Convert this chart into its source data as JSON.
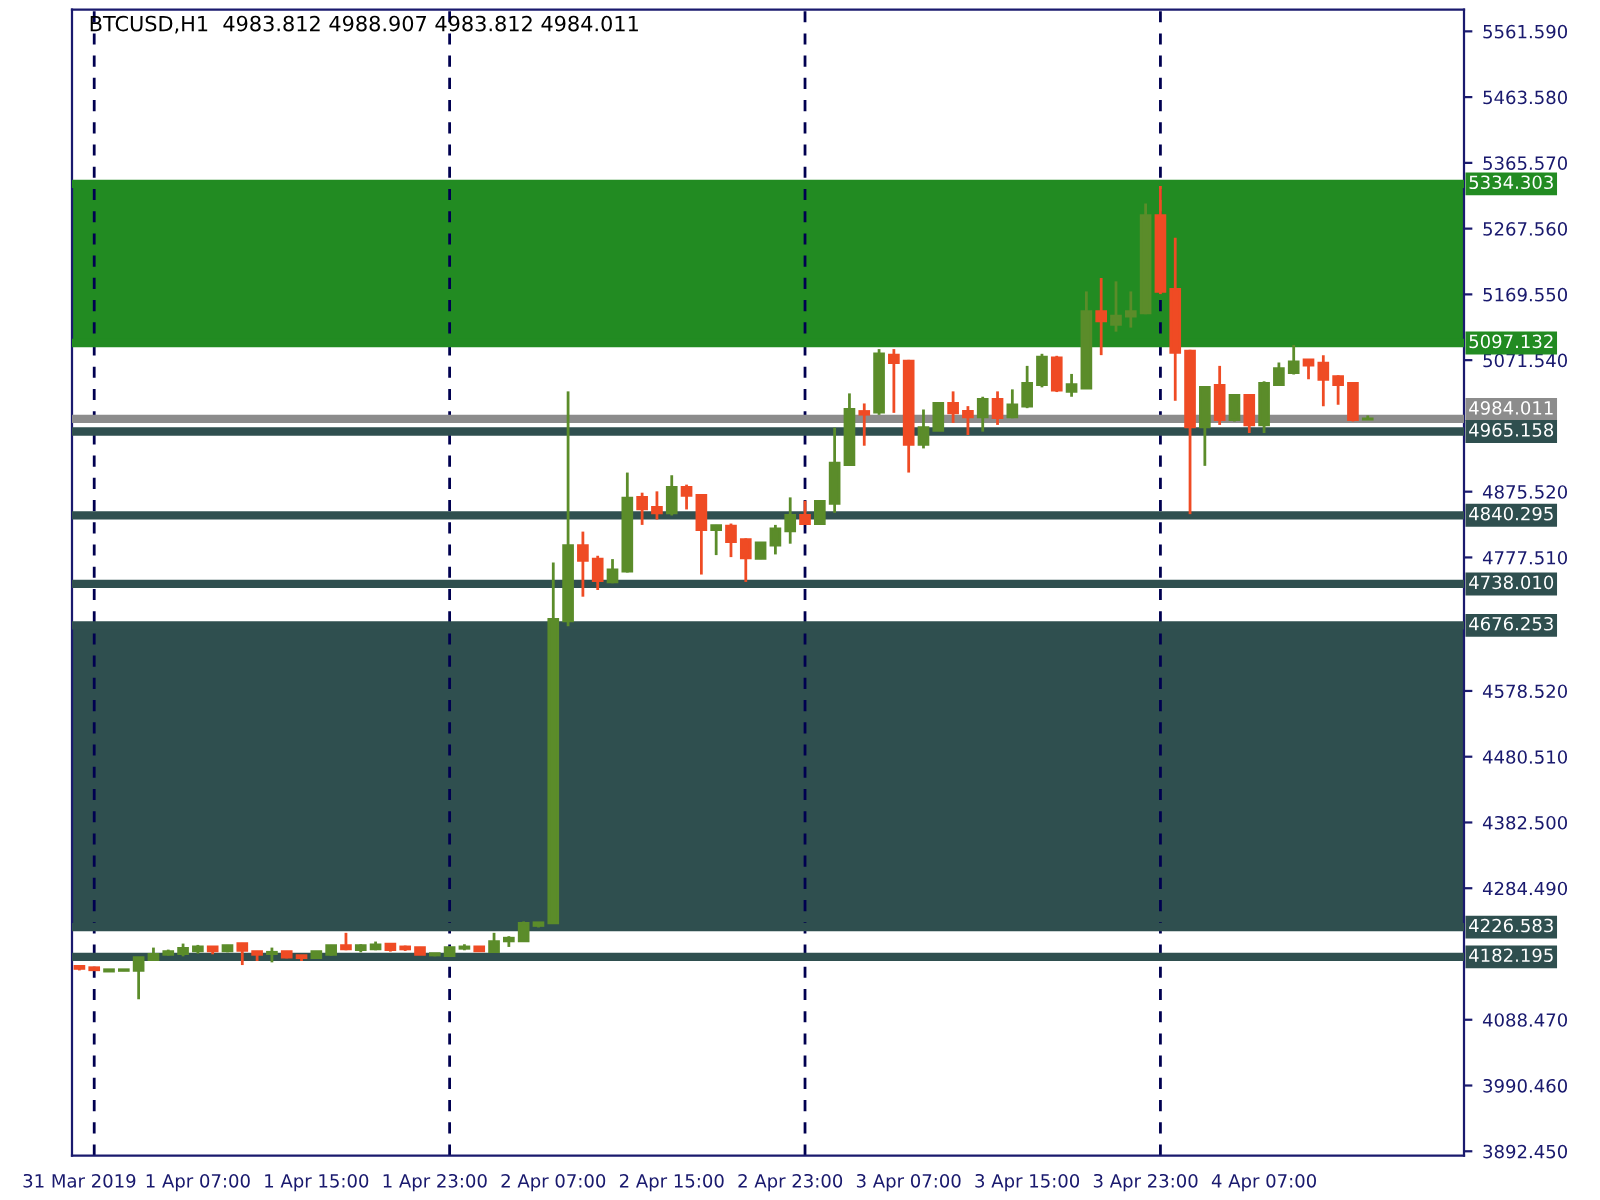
{
  "chart_data": {
    "type": "candlestick",
    "title": "BTCUSD,H1  4983.812 4988.907 4983.812 4984.011",
    "x": [
      "2019-03-31T23:00",
      "2019-04-01T00:00",
      "2019-04-01T01:00",
      "2019-04-01T02:00",
      "2019-04-01T03:00",
      "2019-04-01T04:00",
      "2019-04-01T05:00",
      "2019-04-01T06:00",
      "2019-04-01T07:00",
      "2019-04-01T08:00",
      "2019-04-01T09:00",
      "2019-04-01T10:00",
      "2019-04-01T11:00",
      "2019-04-01T12:00",
      "2019-04-01T13:00",
      "2019-04-01T14:00",
      "2019-04-01T15:00",
      "2019-04-01T16:00",
      "2019-04-01T17:00",
      "2019-04-01T18:00",
      "2019-04-01T19:00",
      "2019-04-01T20:00",
      "2019-04-01T21:00",
      "2019-04-01T22:00",
      "2019-04-01T23:00",
      "2019-04-02T00:00",
      "2019-04-02T01:00",
      "2019-04-02T02:00",
      "2019-04-02T03:00",
      "2019-04-02T04:00",
      "2019-04-02T05:00",
      "2019-04-02T06:00",
      "2019-04-02T07:00",
      "2019-04-02T08:00",
      "2019-04-02T09:00",
      "2019-04-02T10:00",
      "2019-04-02T11:00",
      "2019-04-02T12:00",
      "2019-04-02T13:00",
      "2019-04-02T14:00",
      "2019-04-02T15:00",
      "2019-04-02T16:00",
      "2019-04-02T17:00",
      "2019-04-02T18:00",
      "2019-04-02T19:00",
      "2019-04-02T20:00",
      "2019-04-02T21:00",
      "2019-04-02T22:00",
      "2019-04-02T23:00",
      "2019-04-03T00:00",
      "2019-04-03T01:00",
      "2019-04-03T02:00",
      "2019-04-03T03:00",
      "2019-04-03T04:00",
      "2019-04-03T05:00",
      "2019-04-03T06:00",
      "2019-04-03T07:00",
      "2019-04-03T08:00",
      "2019-04-03T09:00",
      "2019-04-03T10:00",
      "2019-04-03T11:00",
      "2019-04-03T12:00",
      "2019-04-03T13:00",
      "2019-04-03T14:00",
      "2019-04-03T15:00",
      "2019-04-03T16:00",
      "2019-04-03T17:00",
      "2019-04-03T18:00",
      "2019-04-03T19:00",
      "2019-04-03T20:00",
      "2019-04-03T21:00",
      "2019-04-03T22:00",
      "2019-04-03T23:00",
      "2019-04-04T00:00",
      "2019-04-04T01:00",
      "2019-04-04T02:00",
      "2019-04-04T03:00",
      "2019-04-04T04:00",
      "2019-04-04T05:00",
      "2019-04-04T06:00",
      "2019-04-04T07:00",
      "2019-04-04T08:00",
      "2019-04-04T09:00",
      "2019-04-04T10:00",
      "2019-04-04T11:00",
      "2019-04-04T12:00",
      "2019-04-04T13:00",
      "2019-04-04T14:00"
    ],
    "ohlc": [
      [
        4168,
        4170,
        4162,
        4165
      ],
      [
        4166,
        4167,
        4161,
        4163
      ],
      [
        4161,
        4164,
        4160,
        4163
      ],
      [
        4162,
        4164,
        4161,
        4163
      ],
      [
        4162,
        4182,
        4119,
        4181
      ],
      [
        4178,
        4196,
        4177,
        4186
      ],
      [
        4186,
        4193,
        4184,
        4190
      ],
      [
        4187,
        4202,
        4183,
        4195
      ],
      [
        4191,
        4200,
        4187,
        4197
      ],
      [
        4197,
        4198,
        4186,
        4191
      ],
      [
        4191,
        4200,
        4189,
        4199
      ],
      [
        4202,
        4203,
        4170,
        4192
      ],
      [
        4190,
        4191,
        4176,
        4186
      ],
      [
        4187,
        4196,
        4174,
        4189
      ],
      [
        4190,
        4191,
        4180,
        4182
      ],
      [
        4184,
        4185,
        4176,
        4181
      ],
      [
        4181,
        4191,
        4179,
        4190
      ],
      [
        4186,
        4200,
        4184,
        4199
      ],
      [
        4199,
        4218,
        4192,
        4194
      ],
      [
        4193,
        4201,
        4189,
        4199
      ],
      [
        4194,
        4205,
        4192,
        4200
      ],
      [
        4201,
        4202,
        4190,
        4193
      ],
      [
        4197,
        4199,
        4191,
        4194
      ],
      [
        4196,
        4197,
        4185,
        4186
      ],
      [
        4185,
        4188,
        4183,
        4187
      ],
      [
        4184,
        4198,
        4183,
        4196
      ],
      [
        4195,
        4201,
        4192,
        4197
      ],
      [
        4197,
        4198,
        4190,
        4191
      ],
      [
        4190,
        4218,
        4188,
        4205
      ],
      [
        4206,
        4213,
        4197,
        4210
      ],
      [
        4206,
        4235,
        4205,
        4232
      ],
      [
        4229,
        4234,
        4226,
        4233
      ],
      [
        4233,
        4770,
        4231,
        4685
      ],
      [
        4683,
        5025,
        4675,
        4795
      ],
      [
        4795,
        4816,
        4719,
        4773
      ],
      [
        4775,
        4780,
        4729,
        4743
      ],
      [
        4741,
        4775,
        4739,
        4759
      ],
      [
        4757,
        4904,
        4755,
        4866
      ],
      [
        4867,
        4874,
        4826,
        4850
      ],
      [
        4852,
        4876,
        4834,
        4844
      ],
      [
        4844,
        4900,
        4840,
        4882
      ],
      [
        4882,
        4886,
        4849,
        4870
      ],
      [
        4870,
        4872,
        4752,
        4819
      ],
      [
        4819,
        4826,
        4781,
        4825
      ],
      [
        4824,
        4828,
        4778,
        4801
      ],
      [
        4804,
        4806,
        4741,
        4777
      ],
      [
        4776,
        4800,
        4775,
        4799
      ],
      [
        4796,
        4826,
        4782,
        4820
      ],
      [
        4817,
        4867,
        4798,
        4840
      ],
      [
        4840,
        4862,
        4826,
        4828
      ],
      [
        4828,
        4863,
        4826,
        4861
      ],
      [
        4858,
        4971,
        4844,
        4918
      ],
      [
        4916,
        5022,
        4914,
        4998
      ],
      [
        4995,
        5007,
        4944,
        4991
      ],
      [
        4994,
        5088,
        4990,
        5081
      ],
      [
        5079,
        5088,
        4993,
        5068
      ],
      [
        5070,
        5072,
        4904,
        4946
      ],
      [
        4946,
        4998,
        4940,
        4971
      ],
      [
        4967,
        5009,
        4966,
        5007
      ],
      [
        5007,
        5025,
        4978,
        4993
      ],
      [
        4995,
        5003,
        4960,
        4987
      ],
      [
        4987,
        5017,
        4965,
        5013
      ],
      [
        5013,
        5025,
        4975,
        4986
      ],
      [
        4987,
        5028,
        4985,
        5005
      ],
      [
        5003,
        5063,
        5000,
        5037
      ],
      [
        5035,
        5081,
        5031,
        5076
      ],
      [
        5075,
        5078,
        5024,
        5027
      ],
      [
        5025,
        5051,
        5017,
        5035
      ],
      [
        5030,
        5174,
        5029,
        5144
      ],
      [
        5144,
        5194,
        5079,
        5130
      ],
      [
        5125,
        5189,
        5114,
        5137
      ],
      [
        5137,
        5174,
        5120,
        5144
      ],
      [
        5142,
        5305,
        5140,
        5287
      ],
      [
        5287,
        5331,
        5170,
        5174
      ],
      [
        5177,
        5254,
        5011,
        5083
      ],
      [
        5085,
        5087,
        4842,
        4972
      ],
      [
        4972,
        5033,
        4914,
        5031
      ],
      [
        5034,
        5063,
        4975,
        4983
      ],
      [
        4983,
        5021,
        4980,
        5019
      ],
      [
        5019,
        5020,
        4963,
        4975
      ],
      [
        4975,
        5040,
        4963,
        5037
      ],
      [
        5035,
        5068,
        5033,
        5059
      ],
      [
        5053,
        5094,
        5050,
        5069
      ],
      [
        5072,
        5073,
        5043,
        5064
      ],
      [
        5067,
        5079,
        5003,
        5043
      ],
      [
        5047,
        5049,
        5005,
        5035
      ],
      [
        5037,
        5039,
        4980,
        4983
      ],
      [
        4983.812,
        4988.907,
        4983.812,
        4984.011
      ]
    ],
    "colors": [
      "#ef4b24",
      "#ef4b24",
      "#5b8c2a",
      "#5b8c2a",
      "#5b8c2a",
      "#5b8c2a",
      "#5b8c2a",
      "#5b8c2a",
      "#5b8c2a",
      "#ef4b24",
      "#5b8c2a",
      "#ef4b24",
      "#ef4b24",
      "#5b8c2a",
      "#ef4b24",
      "#ef4b24",
      "#5b8c2a",
      "#5b8c2a",
      "#ef4b24",
      "#5b8c2a",
      "#5b8c2a",
      "#ef4b24",
      "#ef4b24",
      "#ef4b24",
      "#5b8c2a",
      "#5b8c2a",
      "#5b8c2a",
      "#ef4b24",
      "#5b8c2a",
      "#5b8c2a",
      "#5b8c2a",
      "#5b8c2a",
      "#5b8c2a",
      "#5b8c2a",
      "#ef4b24",
      "#ef4b24",
      "#5b8c2a",
      "#5b8c2a",
      "#ef4b24",
      "#ef4b24",
      "#5b8c2a",
      "#ef4b24",
      "#ef4b24",
      "#5b8c2a",
      "#ef4b24",
      "#ef4b24",
      "#5b8c2a",
      "#5b8c2a",
      "#5b8c2a",
      "#ef4b24",
      "#5b8c2a",
      "#5b8c2a",
      "#5b8c2a",
      "#ef4b24",
      "#5b8c2a",
      "#ef4b24",
      "#ef4b24",
      "#5b8c2a",
      "#5b8c2a",
      "#ef4b24",
      "#ef4b24",
      "#5b8c2a",
      "#ef4b24",
      "#5b8c2a",
      "#5b8c2a",
      "#5b8c2a",
      "#ef4b24",
      "#5b8c2a",
      "#5b8c2a",
      "#ef4b24",
      "#5b8c2a",
      "#5b8c2a",
      "#5b8c2a",
      "#ef4b24",
      "#ef4b24",
      "#ef4b24",
      "#5b8c2a",
      "#ef4b24",
      "#5b8c2a",
      "#ef4b24",
      "#5b8c2a",
      "#5b8c2a",
      "#5b8c2a",
      "#ef4b24",
      "#ef4b24",
      "#ef4b24",
      "#ef4b24",
      "#5b8c2a"
    ],
    "xlim": [
      "2019-03-31T22:30",
      "2019-04-04T20:30"
    ],
    "xticks": [
      {
        "value": "2019-03-31T23:00",
        "label": "31 Mar 2019"
      },
      {
        "value": "2019-04-01T07:00",
        "label": "1 Apr 07:00"
      },
      {
        "value": "2019-04-01T15:00",
        "label": "1 Apr 15:00"
      },
      {
        "value": "2019-04-01T23:00",
        "label": "1 Apr 23:00"
      },
      {
        "value": "2019-04-02T07:00",
        "label": "2 Apr 07:00"
      },
      {
        "value": "2019-04-02T15:00",
        "label": "2 Apr 15:00"
      },
      {
        "value": "2019-04-02T23:00",
        "label": "2 Apr 23:00"
      },
      {
        "value": "2019-04-03T07:00",
        "label": "3 Apr 07:00"
      },
      {
        "value": "2019-04-03T15:00",
        "label": "3 Apr 15:00"
      },
      {
        "value": "2019-04-03T23:00",
        "label": "3 Apr 23:00"
      },
      {
        "value": "2019-04-04T07:00",
        "label": "4 Apr 07:00"
      }
    ],
    "ylim": [
      3886,
      5594
    ],
    "yticks": [
      {
        "value": 5561.59,
        "label": "5561.590"
      },
      {
        "value": 5463.58,
        "label": "5463.580"
      },
      {
        "value": 5365.57,
        "label": "5365.570"
      },
      {
        "value": 5267.56,
        "label": "5267.560"
      },
      {
        "value": 5169.55,
        "label": "5169.550"
      },
      {
        "value": 5071.54,
        "label": "5071.540"
      },
      {
        "value": 4875.52,
        "label": "4875.520"
      },
      {
        "value": 4777.51,
        "label": "4777.510"
      },
      {
        "value": 4578.52,
        "label": "4578.520"
      },
      {
        "value": 4480.51,
        "label": "4480.510"
      },
      {
        "value": 4382.5,
        "label": "4382.500"
      },
      {
        "value": 4284.49,
        "label": "4284.490"
      },
      {
        "value": 4088.47,
        "label": "4088.470"
      },
      {
        "value": 3990.46,
        "label": "3990.460"
      },
      {
        "value": 3892.45,
        "label": "3892.450"
      }
    ],
    "bands": [
      {
        "axis": "y",
        "from": 5097.132,
        "to": 5334.303,
        "color": "#228b22"
      },
      {
        "axis": "y",
        "from": 4226.583,
        "to": 4676.253,
        "color": "#2f4f4f"
      }
    ],
    "ref_lines": [
      {
        "axis": "y",
        "value": 5334.303,
        "label": "5334.303",
        "color": "#228b22",
        "line_style": "solid"
      },
      {
        "axis": "y",
        "value": 5097.132,
        "label": "5097.132",
        "color": "#228b22",
        "line_style": "solid"
      },
      {
        "axis": "y",
        "value": 4984.011,
        "label": "4984.011",
        "color": "#8c8c8c",
        "line_style": "solid"
      },
      {
        "axis": "y",
        "value": 4965.158,
        "label": "4965.158",
        "color": "#2f4f4f",
        "line_style": "solid"
      },
      {
        "axis": "y",
        "value": 4840.295,
        "label": "4840.295",
        "color": "#2f4f4f",
        "line_style": "solid"
      },
      {
        "axis": "y",
        "value": 4738.01,
        "label": "4738.010",
        "color": "#2f4f4f",
        "line_style": "solid"
      },
      {
        "axis": "y",
        "value": 4676.253,
        "label": "4676.253",
        "color": "#2f4f4f",
        "line_style": "solid"
      },
      {
        "axis": "y",
        "value": 4226.583,
        "label": "4226.583",
        "color": "#2f4f4f",
        "line_style": "solid"
      },
      {
        "axis": "y",
        "value": 4182.195,
        "label": "4182.195",
        "color": "#2f4f4f",
        "line_style": "solid"
      },
      {
        "axis": "x",
        "value": "2019-04-01T00:00",
        "color": "#000050",
        "line_style": "dashed"
      },
      {
        "axis": "x",
        "value": "2019-04-02T00:00",
        "color": "#000050",
        "line_style": "dashed"
      },
      {
        "axis": "x",
        "value": "2019-04-03T00:00",
        "color": "#000050",
        "line_style": "dashed"
      },
      {
        "axis": "x",
        "value": "2019-04-04T00:00",
        "color": "#000050",
        "line_style": "dashed"
      }
    ],
    "grid": false,
    "legend": false
  }
}
